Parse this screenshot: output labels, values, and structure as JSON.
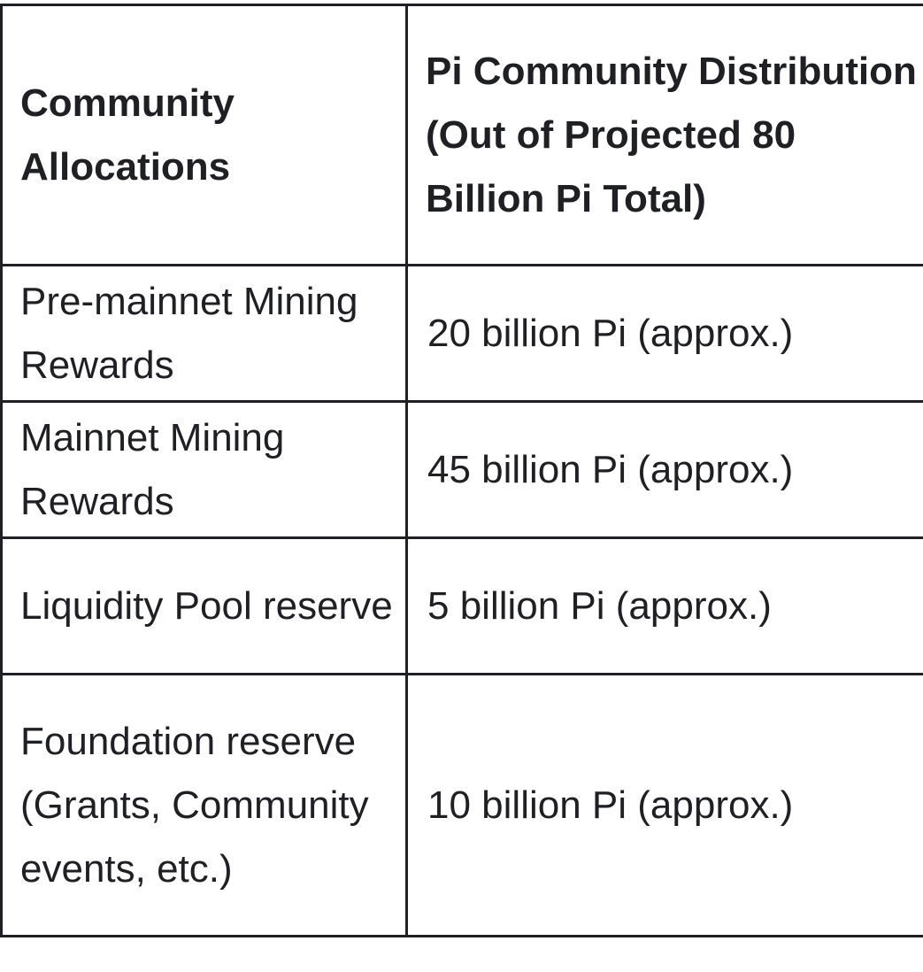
{
  "table": {
    "headers": [
      "Community Allocations",
      "Pi Community Distribution (Out of Projected 80 Billion Pi Total)"
    ],
    "rows": [
      {
        "allocation": "Pre-mainnet Mining Rewards",
        "distribution": "20 billion Pi (approx.)"
      },
      {
        "allocation": "Mainnet Mining Rewards",
        "distribution": "45 billion Pi (approx.)"
      },
      {
        "allocation": "Liquidity Pool reserve",
        "distribution": "5 billion Pi (approx.)"
      },
      {
        "allocation": "Foundation reserve (Grants, Community events, etc.)",
        "distribution": "10 billion Pi (approx.)"
      }
    ]
  }
}
